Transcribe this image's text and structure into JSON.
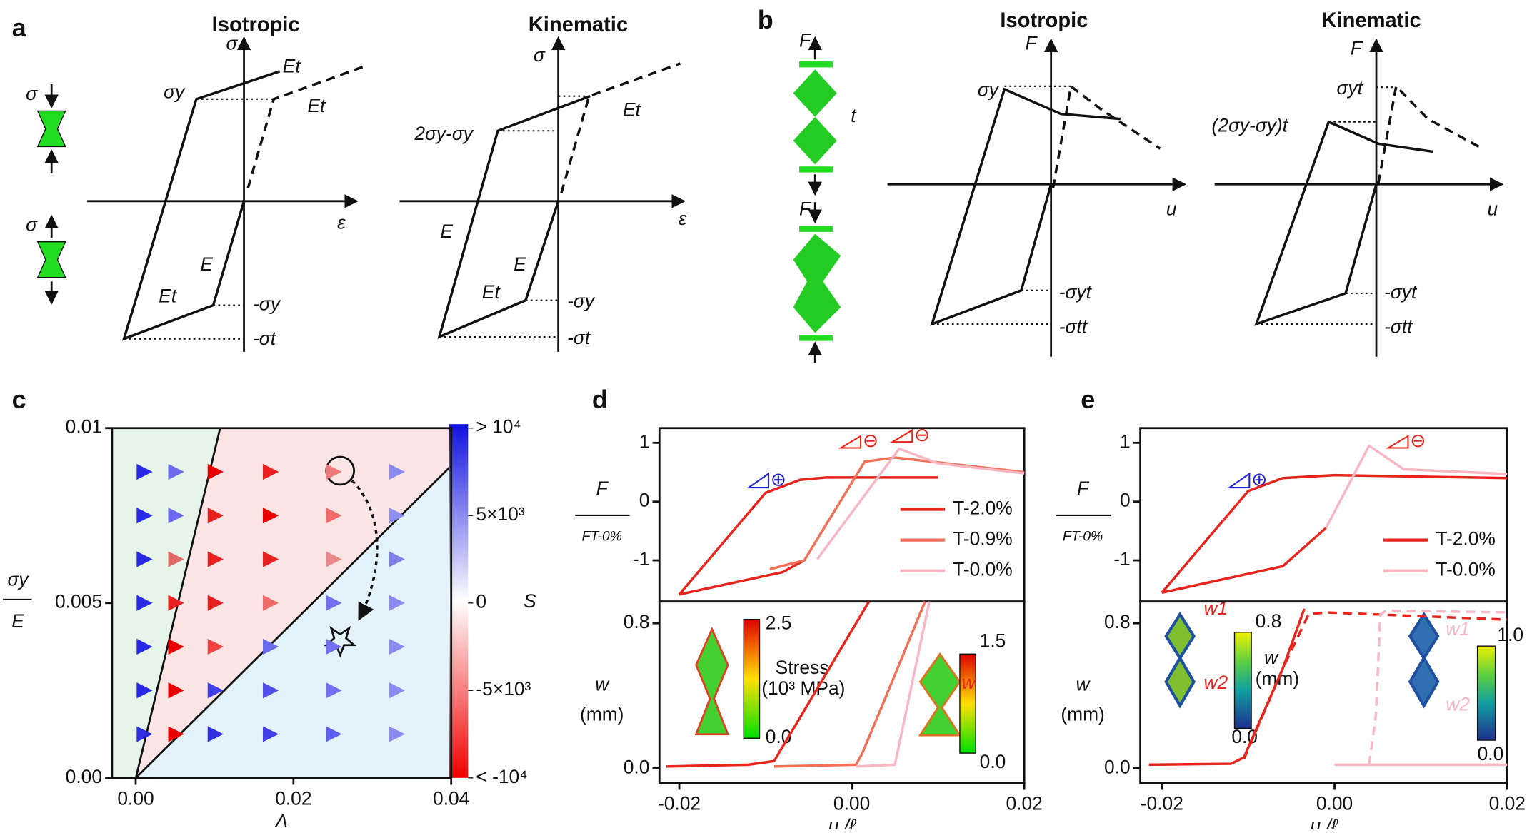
{
  "panels": {
    "a": {
      "label": "a",
      "titles": [
        "Isotropic",
        "Kinematic"
      ],
      "specimen": [
        "σ",
        "σ"
      ],
      "iso": [
        "σ",
        "Et",
        "σy",
        "Et",
        "ε",
        "E",
        "Et",
        "-σy",
        "-σt"
      ],
      "kin": [
        "σ",
        "2σy-σy",
        "Et",
        "ε",
        "E",
        "E",
        "Et",
        "-σy",
        "-σt"
      ]
    },
    "b": {
      "label": "b",
      "titles": [
        "Isotropic",
        "Kinematic"
      ],
      "specimen": [
        "F",
        "t",
        "F"
      ],
      "iso": [
        "F",
        "σy",
        "u",
        "-σyt",
        "-σtt"
      ],
      "kin": [
        "F",
        "σyt",
        "(2σy-σy)t",
        "u",
        "-σyt",
        "-σtt"
      ]
    },
    "c": {
      "label": "c"
    },
    "d": {
      "label": "d",
      "annotations": [
        "⊕",
        "⊖",
        "⊖"
      ],
      "insets": [
        "2.5",
        "0.0",
        "Stress",
        "(10³ MPa)",
        "1.5",
        "0.0",
        "w"
      ]
    },
    "e": {
      "label": "e",
      "annotations": [
        "⊕",
        "⊖"
      ],
      "insets": [
        "w1",
        "w2",
        "0.8",
        "w",
        "(mm)",
        "0.0",
        "w1",
        "w2",
        "1.0",
        "0.0"
      ]
    }
  },
  "chart_data": [
    {
      "type": "scatter",
      "xlabel": "Λ",
      "ylabel": "σy",
      "ylabel_denominator": "E",
      "xlim": [
        -0.003,
        0.04
      ],
      "ylim": [
        0,
        0.01
      ],
      "xticks": [
        {
          "value": 0,
          "label": "0.00"
        },
        0.02,
        0.04
      ],
      "yticks": [
        {
          "value": 0,
          "label": "0.00"
        },
        0.005,
        0.01
      ],
      "x": [
        0.001,
        0.005,
        0.01,
        0.017,
        0.025,
        0.033,
        0.001,
        0.005,
        0.01,
        0.017,
        0.025,
        0.033,
        0.001,
        0.005,
        0.01,
        0.017,
        0.025,
        0.033,
        0.001,
        0.005,
        0.01,
        0.017,
        0.025,
        0.033,
        0.001,
        0.005,
        0.01,
        0.017,
        0.025,
        0.033,
        0.001,
        0.005,
        0.01,
        0.017,
        0.025,
        0.033,
        0.001,
        0.005,
        0.01,
        0.017,
        0.025,
        0.033
      ],
      "values": [
        0.00875,
        0.00875,
        0.00875,
        0.00875,
        0.00875,
        0.00875,
        0.0075,
        0.0075,
        0.0075,
        0.0075,
        0.0075,
        0.0075,
        0.00625,
        0.00625,
        0.00625,
        0.00625,
        0.00625,
        0.00625,
        0.005,
        0.005,
        0.005,
        0.005,
        0.005,
        0.005,
        0.00375,
        0.00375,
        0.00375,
        0.00375,
        0.00375,
        0.00375,
        0.0025,
        0.0025,
        0.0025,
        0.0025,
        0.0025,
        0.0025,
        0.00125,
        0.00125,
        0.00125,
        0.00125,
        0.00125,
        0.00125
      ],
      "colors": [
        "#2a2ae6",
        "#6a6aec",
        "#e80000",
        "#e82020",
        "#f07a7a",
        "#8a8af0",
        "#2a2ae6",
        "#6a6aec",
        "#e82020",
        "#e80000",
        "#f06a6a",
        "#9090f0",
        "#2a2ae6",
        "#e06a6a",
        "#e82020",
        "#e82020",
        "#e88888",
        "#8080e8",
        "#2a2ae6",
        "#e82020",
        "#e82020",
        "#f06a6a",
        "#7070f0",
        "#8a8af0",
        "#2a2ae6",
        "#e80000",
        "#f04040",
        "#6a6aee",
        "#7070f0",
        "#8a8af0",
        "#2a2ae6",
        "#e80000",
        "#4040e6",
        "#5050e8",
        "#7070f0",
        "#8a8af0",
        "#3030e0",
        "#e80000",
        "#3030e0",
        "#4040e6",
        "#6060f0",
        "#8a8af0"
      ],
      "colorbar": {
        "label": "S",
        "lim": [
          -10000,
          10000
        ],
        "ticks": [
          {
            "value": 10000,
            "label": "> 10⁴"
          },
          {
            "value": 5000,
            "label": "5×10³"
          },
          0,
          {
            "value": -5000,
            "label": "-5×10³"
          },
          {
            "value": -10000,
            "label": "< -10⁴"
          }
        ]
      }
    },
    {
      "type": "line",
      "ylabel": "F",
      "ylabel_denominator": "FT-0%",
      "xlim": [
        -0.0223,
        0.02
      ],
      "ylim": [
        -1.7,
        1.25
      ],
      "yticks": [
        -1,
        0,
        1
      ],
      "legend": "lower right",
      "series": [
        {
          "name": "T-2.0%",
          "color": "#e8251c",
          "x": [
            -0.02,
            -0.01,
            -0.006,
            -0.003,
            0.01,
            null,
            -0.02,
            -0.008,
            -0.0055
          ],
          "values": [
            -1.58,
            0.15,
            0.37,
            0.41,
            0.41,
            null,
            -1.58,
            -1.2,
            -1.0
          ]
        },
        {
          "name": "T-0.9%",
          "color": "#f07058",
          "x": [
            -0.0095,
            -0.0055,
            0.0015,
            0.005,
            0.02
          ],
          "values": [
            -1.15,
            -1.0,
            0.68,
            0.75,
            0.5
          ]
        },
        {
          "name": "T-0.0%",
          "color": "#f7b8c4",
          "x": [
            -0.004,
            0.0055,
            0.01,
            0.02
          ],
          "values": [
            -0.98,
            0.9,
            0.65,
            0.48
          ]
        }
      ]
    },
    {
      "type": "line",
      "ylabel": "w",
      "ylabel_unit": "(mm)",
      "xlabel": "u /ℓ",
      "xlim": [
        -0.0223,
        0.02
      ],
      "ylim": [
        -0.08,
        0.92
      ],
      "xticks": [
        -0.02,
        {
          "value": 0,
          "label": "0.00"
        },
        0.02
      ],
      "yticks": [
        {
          "value": 0,
          "label": "0.0"
        },
        0.8
      ],
      "series": [
        {
          "color": "#e8251c",
          "x": [
            -0.0215,
            -0.012,
            -0.009,
            -0.002,
            0.002
          ],
          "values": [
            0.01,
            0.02,
            0.04,
            0.6,
            0.92
          ]
        },
        {
          "color": "#f07058",
          "x": [
            -0.009,
            0.0005,
            0.0012,
            0.004,
            0.0085
          ],
          "values": [
            0.01,
            0.02,
            0.08,
            0.4,
            0.92
          ]
        },
        {
          "color": "#f7b8c4",
          "x": [
            0.0005,
            0.005,
            0.0058,
            0.009
          ],
          "values": [
            0.01,
            0.02,
            0.2,
            0.92
          ]
        }
      ]
    },
    {
      "type": "line",
      "ylabel": "F",
      "ylabel_denominator": "FT-0%",
      "xlim": [
        -0.0225,
        0.02
      ],
      "ylim": [
        -1.7,
        1.25
      ],
      "yticks": [
        -1,
        0,
        1
      ],
      "legend": "lower right",
      "series": [
        {
          "name": "T-2.0%",
          "color": "#e8251c",
          "x": [
            -0.02,
            -0.01,
            -0.006,
            0,
            0.02,
            null,
            -0.02,
            -0.006,
            -0.001
          ],
          "values": [
            -1.55,
            0.18,
            0.4,
            0.45,
            0.4,
            null,
            -1.55,
            -1.1,
            -0.45
          ]
        },
        {
          "name": "T-0.0%",
          "color": "#f7b8c4",
          "x": [
            -0.001,
            0.004,
            0.008,
            0.02
          ],
          "values": [
            -0.45,
            0.95,
            0.55,
            0.47
          ]
        }
      ]
    },
    {
      "type": "line",
      "ylabel": "w",
      "ylabel_unit": "(mm)",
      "xlabel": "u /ℓ",
      "xlim": [
        -0.0225,
        0.02
      ],
      "ylim": [
        -0.08,
        0.92
      ],
      "xticks": [
        -0.02,
        {
          "value": 0,
          "label": "0.00"
        },
        0.02
      ],
      "yticks": [
        {
          "value": 0,
          "label": "0.0"
        },
        0.8
      ],
      "series": [
        {
          "color": "#e8251c",
          "x": [
            -0.0215,
            -0.012,
            -0.0105,
            -0.006,
            -0.0035
          ],
          "values": [
            0.02,
            0.025,
            0.06,
            0.55,
            0.88
          ]
        },
        {
          "color": "#e8251c",
          "dashed": true,
          "x": [
            -0.0105,
            -0.006,
            -0.003,
            -0.001,
            0.02
          ],
          "values": [
            0.05,
            0.55,
            0.85,
            0.86,
            0.82
          ]
        },
        {
          "color": "#f7b8c4",
          "x": [
            0,
            0.02
          ],
          "values": [
            0.02,
            0.02
          ]
        },
        {
          "color": "#f7b8c4",
          "dashed": true,
          "x": [
            0.004,
            0.0048,
            0.0053,
            0.006,
            0.02
          ],
          "values": [
            0.02,
            0.3,
            0.85,
            0.87,
            0.86
          ]
        }
      ]
    }
  ]
}
